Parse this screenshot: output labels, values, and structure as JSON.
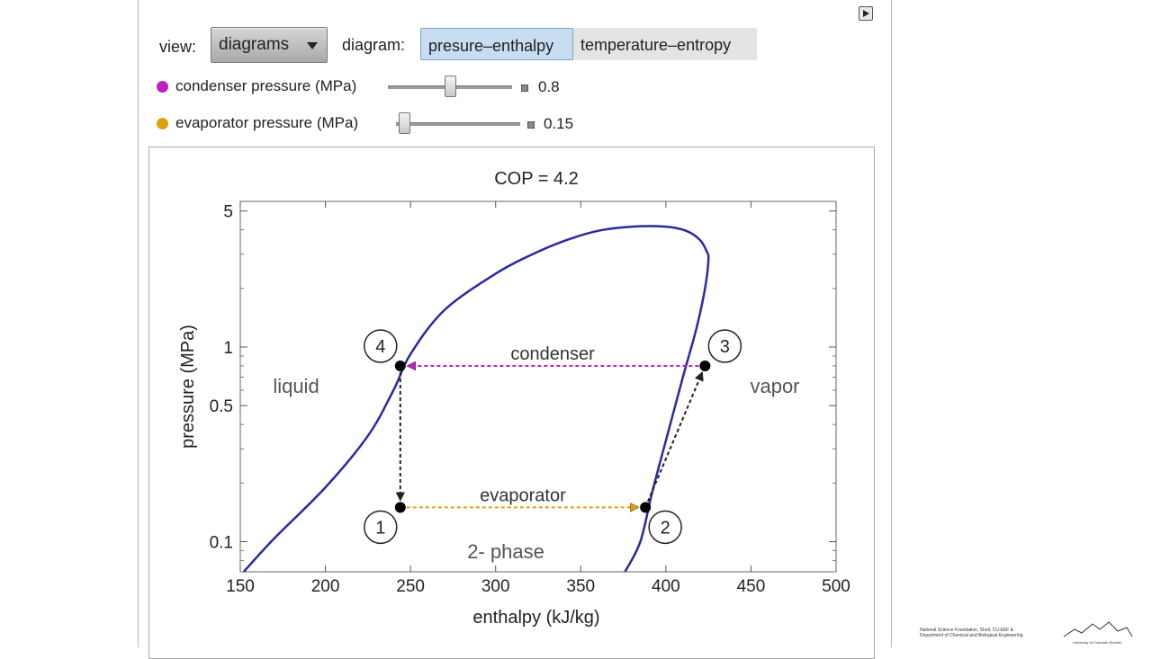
{
  "controls": {
    "view_label": "view:",
    "view_selected": "diagrams",
    "diagram_label": "diagram:",
    "diagram_options": [
      "presure–enthalpy",
      "temperature–entropy"
    ],
    "diagram_selected_index": 0,
    "condenser": {
      "label": "condenser pressure (MPa)",
      "value": "0.8",
      "color": "#c020c0",
      "slider_fraction": 0.5
    },
    "evaporator": {
      "label": "evaporator pressure (MPa)",
      "value": "0.15",
      "color": "#e0a010",
      "slider_fraction": 0.02
    }
  },
  "chart_data": {
    "type": "line",
    "title": "COP = 4.2",
    "xlabel": "enthalpy (kJ/kg)",
    "ylabel": "pressure (MPa)",
    "xlim": [
      150,
      500
    ],
    "ylim": [
      0.07,
      5.6
    ],
    "yscale": "log",
    "x_ticks": [
      150,
      200,
      250,
      300,
      350,
      400,
      450,
      500
    ],
    "y_ticks": [
      {
        "value": 0.1,
        "label": "0.1"
      },
      {
        "value": 0.5,
        "label": "0.5"
      },
      {
        "value": 1,
        "label": "1"
      },
      {
        "value": 5,
        "label": "5"
      }
    ],
    "saturation_dome": {
      "color": "#2a2aa0",
      "points": [
        [
          152,
          0.07
        ],
        [
          170,
          0.104
        ],
        [
          200,
          0.19
        ],
        [
          225,
          0.35
        ],
        [
          240,
          0.6
        ],
        [
          250,
          0.92
        ],
        [
          270,
          1.55
        ],
        [
          300,
          2.38
        ],
        [
          320,
          2.95
        ],
        [
          340,
          3.5
        ],
        [
          360,
          3.95
        ],
        [
          380,
          4.15
        ],
        [
          400,
          4.15
        ],
        [
          412,
          3.95
        ],
        [
          420,
          3.55
        ],
        [
          424,
          3.1
        ],
        [
          425,
          2.8
        ],
        [
          423,
          2.0
        ],
        [
          418,
          1.25
        ],
        [
          410,
          0.7
        ],
        [
          400,
          0.33
        ],
        [
          392,
          0.18
        ],
        [
          385,
          0.1
        ],
        [
          376,
          0.07
        ]
      ]
    },
    "states": [
      {
        "id": "1",
        "h": 244,
        "p": 0.15
      },
      {
        "id": "2",
        "h": 388,
        "p": 0.15
      },
      {
        "id": "3",
        "h": 423,
        "p": 0.8
      },
      {
        "id": "4",
        "h": 244,
        "p": 0.8
      }
    ],
    "processes": [
      {
        "name": "condenser",
        "from": "3",
        "to": "4",
        "color": "#c020c0"
      },
      {
        "name": "evaporator",
        "from": "1",
        "to": "2",
        "color": "#e0a010"
      },
      {
        "name": "",
        "from": "4",
        "to": "1",
        "color": "#222222"
      },
      {
        "name": "",
        "from": "2",
        "to": "3",
        "color": "#222222"
      }
    ],
    "region_labels": {
      "liquid": "liquid",
      "vapor": "vapor",
      "two_phase": "2- phase"
    }
  },
  "credits": {
    "line1": "National Science Foundation, Shell, CU-EEF &",
    "line2": "Department of Chemical and Biological Engineering",
    "university": "University of Colorado Boulder"
  }
}
